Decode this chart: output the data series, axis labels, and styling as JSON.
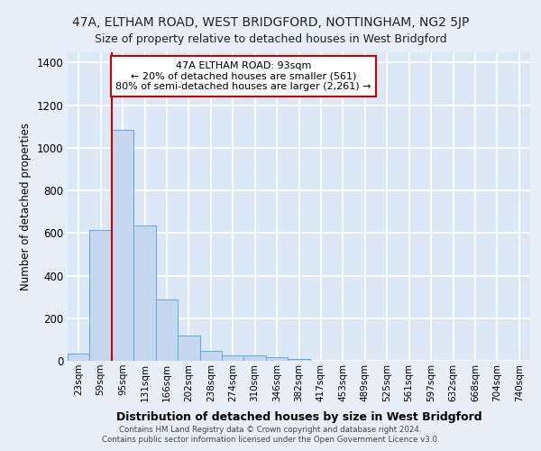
{
  "title_line1": "47A, ELTHAM ROAD, WEST BRIDGFORD, NOTTINGHAM, NG2 5JP",
  "title_line2": "Size of property relative to detached houses in West Bridgford",
  "xlabel": "Distribution of detached houses by size in West Bridgford",
  "ylabel": "Number of detached properties",
  "categories": [
    "23sqm",
    "59sqm",
    "95sqm",
    "131sqm",
    "166sqm",
    "202sqm",
    "238sqm",
    "274sqm",
    "310sqm",
    "346sqm",
    "382sqm",
    "417sqm",
    "453sqm",
    "489sqm",
    "525sqm",
    "561sqm",
    "597sqm",
    "632sqm",
    "668sqm",
    "704sqm",
    "740sqm"
  ],
  "values": [
    35,
    615,
    1085,
    635,
    290,
    120,
    48,
    25,
    25,
    18,
    10,
    0,
    0,
    0,
    0,
    0,
    0,
    0,
    0,
    0,
    0
  ],
  "bar_color": "#c5d8f0",
  "bar_edge_color": "#6aaed6",
  "highlight_label": "47A ELTHAM ROAD: 93sqm",
  "annotation_smaller": "← 20% of detached houses are smaller (561)",
  "annotation_larger": "80% of semi-detached houses are larger (2,261) →",
  "vline_color": "#cc0000",
  "box_color": "#cc0000",
  "ylim": [
    0,
    1450
  ],
  "yticks": [
    0,
    200,
    400,
    600,
    800,
    1000,
    1200,
    1400
  ],
  "footer_line1": "Contains HM Land Registry data © Crown copyright and database right 2024.",
  "footer_line2": "Contains public sector information licensed under the Open Government Licence v3.0.",
  "background_color": "#e8eef8",
  "plot_bg_color": "#dce8f5",
  "grid_color": "#c8d8ec"
}
